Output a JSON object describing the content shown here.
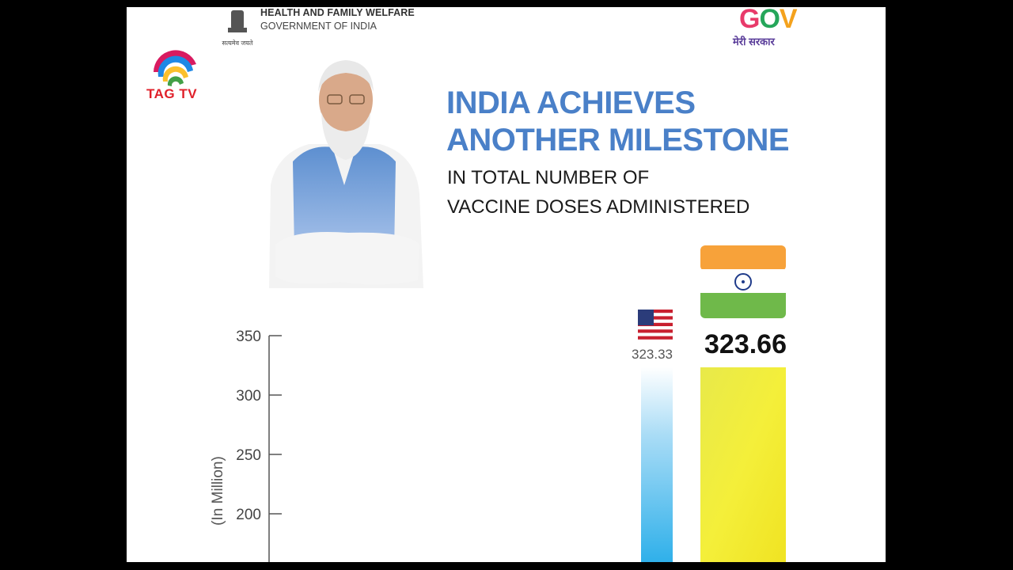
{
  "channel": {
    "name": "TAG TV"
  },
  "ministry": {
    "line1": "HEALTH AND FAMILY WELFARE",
    "line2": "GOVERNMENT OF INDIA",
    "emblem_caption": "सत्यमेव जयते"
  },
  "gov_logo": {
    "g": "G",
    "o": "O",
    "v": "V",
    "tagline": "मेरी सरकार"
  },
  "headline": {
    "line1": "INDIA ACHIEVES",
    "line2": "ANOTHER MILESTONE",
    "line3": "IN TOTAL NUMBER OF",
    "line4": "VACCINE DOSES ADMINISTERED"
  },
  "colors": {
    "headline": "#4a80c8",
    "india_bar": "#f2e830",
    "usa_bar": "#3fb6ea",
    "channel_red": "#e0202a"
  },
  "chart_data": {
    "type": "bar",
    "ylabel": "(In Million)",
    "yticks": [
      "350",
      "300",
      "250",
      "200"
    ],
    "tick_values": [
      350,
      300,
      250,
      200
    ],
    "ylim": [
      160,
      350
    ],
    "categories": [
      "USA",
      "India"
    ],
    "category_icons": [
      "usa-flag-icon",
      "india-flag-icon"
    ],
    "values": [
      323.33,
      323.66
    ],
    "value_labels": [
      "323.33",
      "323.66"
    ]
  }
}
